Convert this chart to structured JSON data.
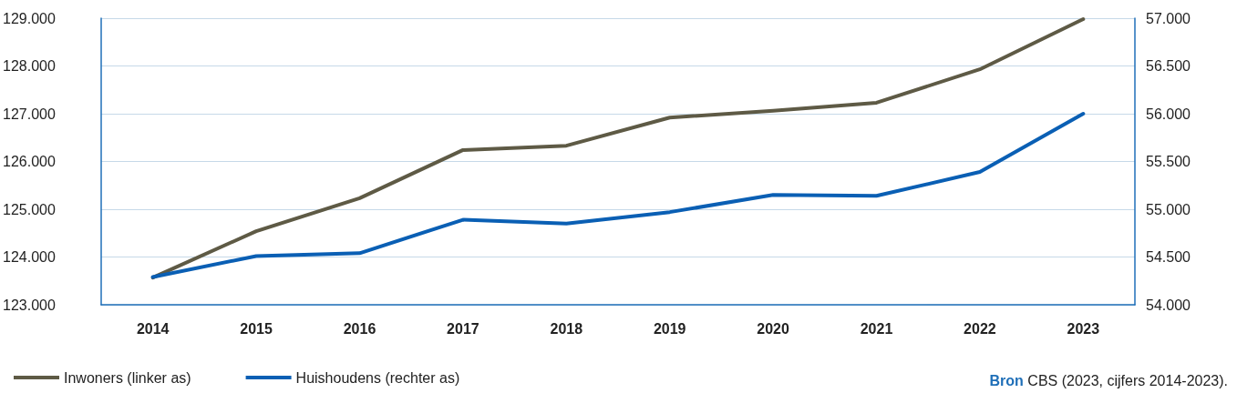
{
  "chart_data": {
    "type": "line",
    "categories": [
      "2014",
      "2015",
      "2016",
      "2017",
      "2018",
      "2019",
      "2020",
      "2021",
      "2022",
      "2023"
    ],
    "series": [
      {
        "name": "Inwoners (linker as)",
        "color": "#5e5a45",
        "values": [
          123570,
          124540,
          125230,
          126240,
          126330,
          126920,
          127060,
          127230,
          127930,
          128980
        ]
      },
      {
        "name": "Huishoudens (rechter as)",
        "color": "#0a5fb4",
        "axis": "y2",
        "values": [
          54290,
          54510,
          54540,
          54890,
          54850,
          54970,
          55150,
          55140,
          55390,
          56000
        ]
      }
    ],
    "ylim": [
      123000,
      129000
    ],
    "yticks": [
      {
        "value": 123000,
        "label": "123.000"
      },
      {
        "value": 124000,
        "label": "124.000"
      },
      {
        "value": 125000,
        "label": "125.000"
      },
      {
        "value": 126000,
        "label": "126.000"
      },
      {
        "value": 127000,
        "label": "127.000"
      },
      {
        "value": 128000,
        "label": "128.000"
      },
      {
        "value": 129000,
        "label": "129.000"
      }
    ],
    "y2lim": [
      54000,
      57000
    ],
    "y2ticks": [
      {
        "value": 54000,
        "label": "54.000"
      },
      {
        "value": 54500,
        "label": "54.500"
      },
      {
        "value": 55000,
        "label": "55.000"
      },
      {
        "value": 55500,
        "label": "55.500"
      },
      {
        "value": 56000,
        "label": "56.000"
      },
      {
        "value": 56500,
        "label": "56.500"
      },
      {
        "value": 57000,
        "label": "57.000"
      }
    ],
    "grid": "y",
    "legend": "bottom left",
    "marker": "none",
    "line_style": "solid",
    "annotations": [
      "Bron CBS (2023, cijfers 2014-2023)."
    ]
  }
}
